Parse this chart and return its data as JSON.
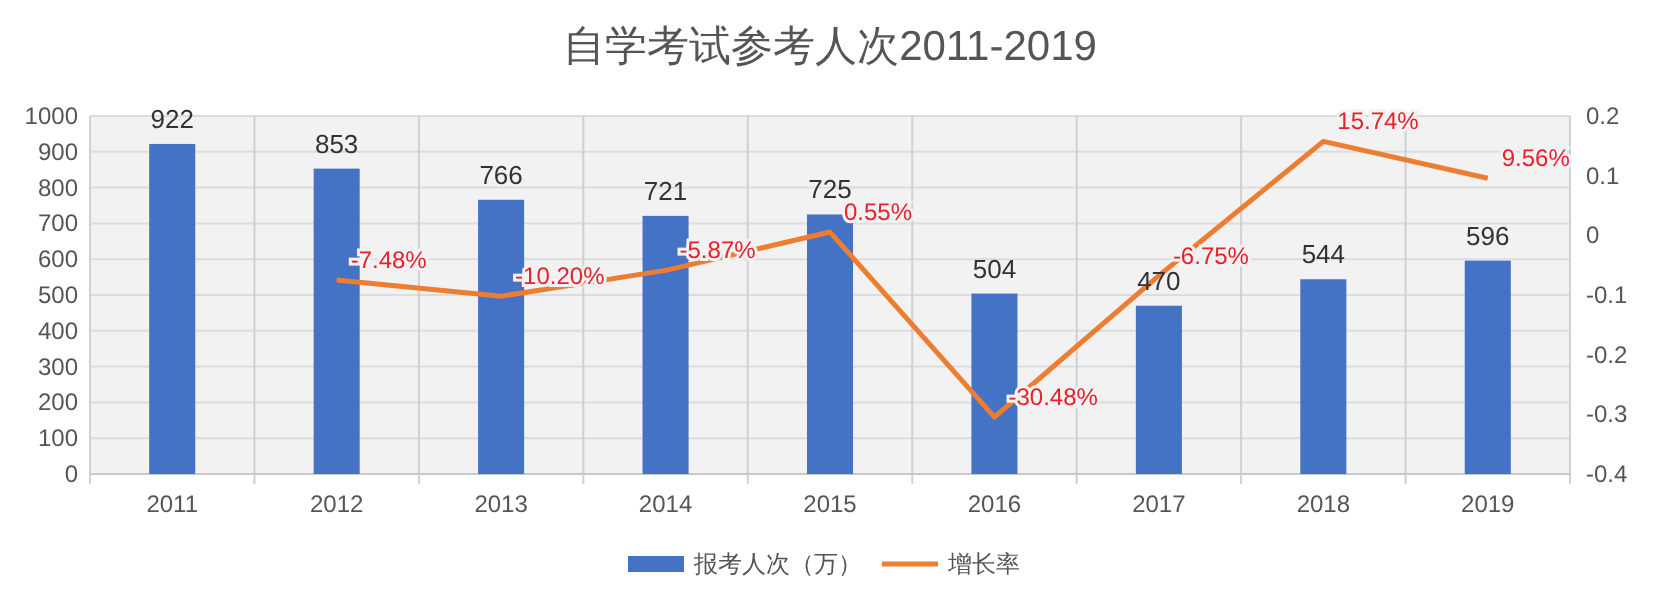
{
  "chart_data": {
    "type": "bar",
    "title": "自学考试参考人次2011-2019",
    "categories": [
      "2011",
      "2012",
      "2013",
      "2014",
      "2015",
      "2016",
      "2017",
      "2018",
      "2019"
    ],
    "series": [
      {
        "name": "报考人次（万）",
        "color": "#4472c4",
        "values": [
          922,
          853,
          766,
          721,
          725,
          504,
          470,
          544,
          596
        ],
        "value_labels": [
          "922",
          "853",
          "766",
          "721",
          "725",
          "504",
          "470",
          "544",
          "596"
        ]
      },
      {
        "name": "增长率",
        "type": "line",
        "axis": "y2",
        "color": "#ed7d31",
        "values": [
          null,
          -0.0748,
          -0.102,
          -0.0587,
          0.0055,
          -0.3048,
          -0.0675,
          0.1574,
          0.0956
        ],
        "value_labels": [
          null,
          "-7.48%",
          "-10.20%",
          "-5.87%",
          "0.55%",
          "-30.48%",
          "-6.75%",
          "15.74%",
          "9.56%"
        ]
      }
    ],
    "ylim": [
      0,
      1000
    ],
    "yticks": [
      0,
      100,
      200,
      300,
      400,
      500,
      600,
      700,
      800,
      900,
      1000
    ],
    "y2lim": [
      -0.4,
      0.2
    ],
    "y2ticks": [
      -0.4,
      -0.3,
      -0.2,
      -0.1,
      0,
      0.1,
      0.2
    ],
    "grid": true,
    "legend": "bottom",
    "marker": "none",
    "line_style": "solid"
  }
}
